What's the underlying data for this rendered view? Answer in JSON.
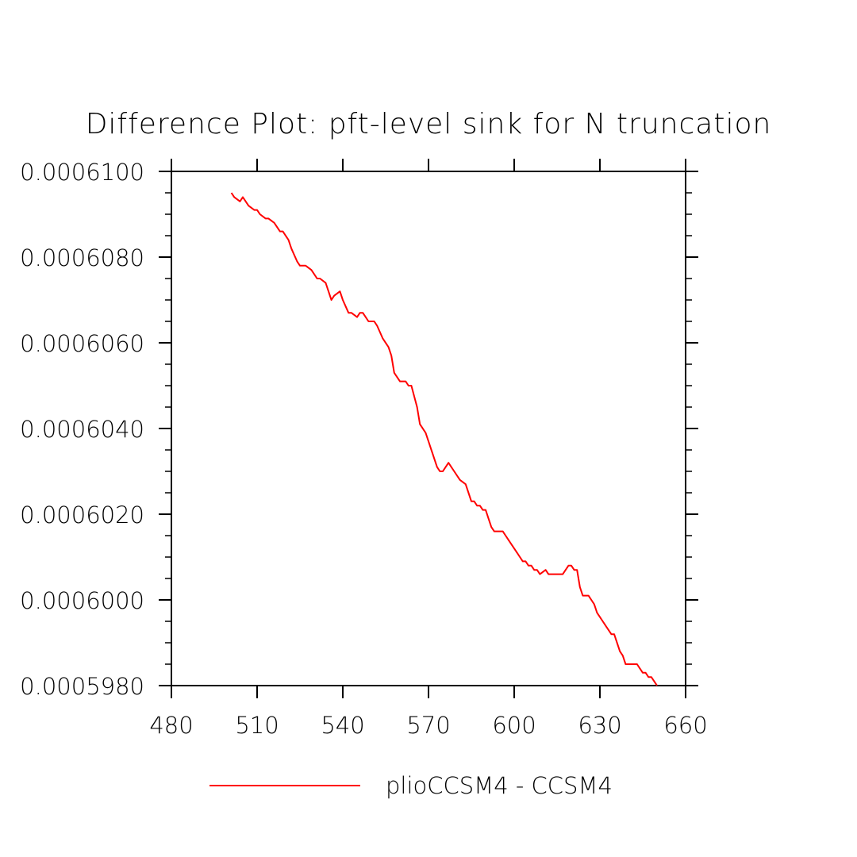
{
  "chart_data": {
    "type": "line",
    "title": "Difference Plot: pft-level sink for N truncation",
    "xlabel": "",
    "ylabel": "",
    "xlim": [
      480,
      660
    ],
    "ylim": [
      0.000598,
      0.00061
    ],
    "xticks": [
      "480",
      "510",
      "540",
      "570",
      "600",
      "630",
      "660"
    ],
    "yticks": [
      "0.0005980",
      "0.0006000",
      "0.0006020",
      "0.0006040",
      "0.0006060",
      "0.0006080",
      "0.0006100"
    ],
    "grid": false,
    "legend_position": "bottom",
    "series": [
      {
        "name": "plioCCSM4 - CCSM4",
        "color": "#ff0000",
        "x": [
          501,
          502,
          504,
          505,
          506,
          507,
          509,
          510,
          511,
          513,
          514,
          516,
          518,
          519,
          521,
          522,
          524,
          525,
          526,
          527,
          529,
          530,
          531,
          532,
          534,
          535,
          536,
          537,
          539,
          540,
          542,
          543,
          545,
          546,
          547,
          548,
          549,
          551,
          552,
          554,
          556,
          557,
          558,
          560,
          562,
          563,
          564,
          566,
          567,
          569,
          570,
          571,
          573,
          574,
          575,
          576,
          577,
          579,
          581,
          583,
          584,
          585,
          586,
          587,
          588,
          589,
          590,
          591,
          592,
          593,
          595,
          596,
          597,
          598,
          599,
          600,
          601,
          602,
          603,
          604,
          605,
          606,
          607,
          608,
          609,
          611,
          612,
          613,
          614,
          615,
          616,
          617,
          618,
          619,
          620,
          621,
          622,
          623,
          624,
          625,
          626,
          627,
          628,
          629,
          630,
          631,
          632,
          633,
          634,
          635,
          636,
          637,
          638,
          639,
          640,
          641,
          642,
          643,
          644,
          645,
          646,
          647,
          648,
          649,
          650
        ],
        "values": [
          0.0006095,
          0.0006094,
          0.0006093,
          0.0006094,
          0.0006093,
          0.0006092,
          0.0006091,
          0.0006091,
          0.000609,
          0.0006089,
          0.0006089,
          0.0006088,
          0.0006086,
          0.0006086,
          0.0006084,
          0.0006082,
          0.0006079,
          0.0006078,
          0.0006078,
          0.0006078,
          0.0006077,
          0.0006076,
          0.0006075,
          0.0006075,
          0.0006074,
          0.0006072,
          0.000607,
          0.0006071,
          0.0006072,
          0.000607,
          0.0006067,
          0.0006067,
          0.0006066,
          0.0006067,
          0.0006067,
          0.0006066,
          0.0006065,
          0.0006065,
          0.0006064,
          0.0006061,
          0.0006059,
          0.0006057,
          0.0006053,
          0.0006051,
          0.0006051,
          0.000605,
          0.000605,
          0.0006045,
          0.0006041,
          0.0006039,
          0.0006037,
          0.0006035,
          0.0006031,
          0.000603,
          0.000603,
          0.0006031,
          0.0006032,
          0.000603,
          0.0006028,
          0.0006027,
          0.0006025,
          0.0006023,
          0.0006023,
          0.0006022,
          0.0006022,
          0.0006021,
          0.0006021,
          0.0006019,
          0.0006017,
          0.0006016,
          0.0006016,
          0.0006016,
          0.0006015,
          0.0006014,
          0.0006013,
          0.0006012,
          0.0006011,
          0.000601,
          0.0006009,
          0.0006009,
          0.0006008,
          0.0006008,
          0.0006007,
          0.0006007,
          0.0006006,
          0.0006007,
          0.0006006,
          0.0006006,
          0.0006006,
          0.0006006,
          0.0006006,
          0.0006006,
          0.0006007,
          0.0006008,
          0.0006008,
          0.0006007,
          0.0006007,
          0.0006003,
          0.0006001,
          0.0006001,
          0.0006001,
          0.0006,
          0.0005999,
          0.0005997,
          0.0005996,
          0.0005995,
          0.0005994,
          0.0005993,
          0.0005992,
          0.0005992,
          0.000599,
          0.0005988,
          0.0005987,
          0.0005985,
          0.0005985,
          0.0005985,
          0.0005985,
          0.0005985,
          0.0005984,
          0.0005983,
          0.0005983,
          0.0005982,
          0.0005982,
          0.0005981,
          0.000598
        ]
      }
    ]
  }
}
